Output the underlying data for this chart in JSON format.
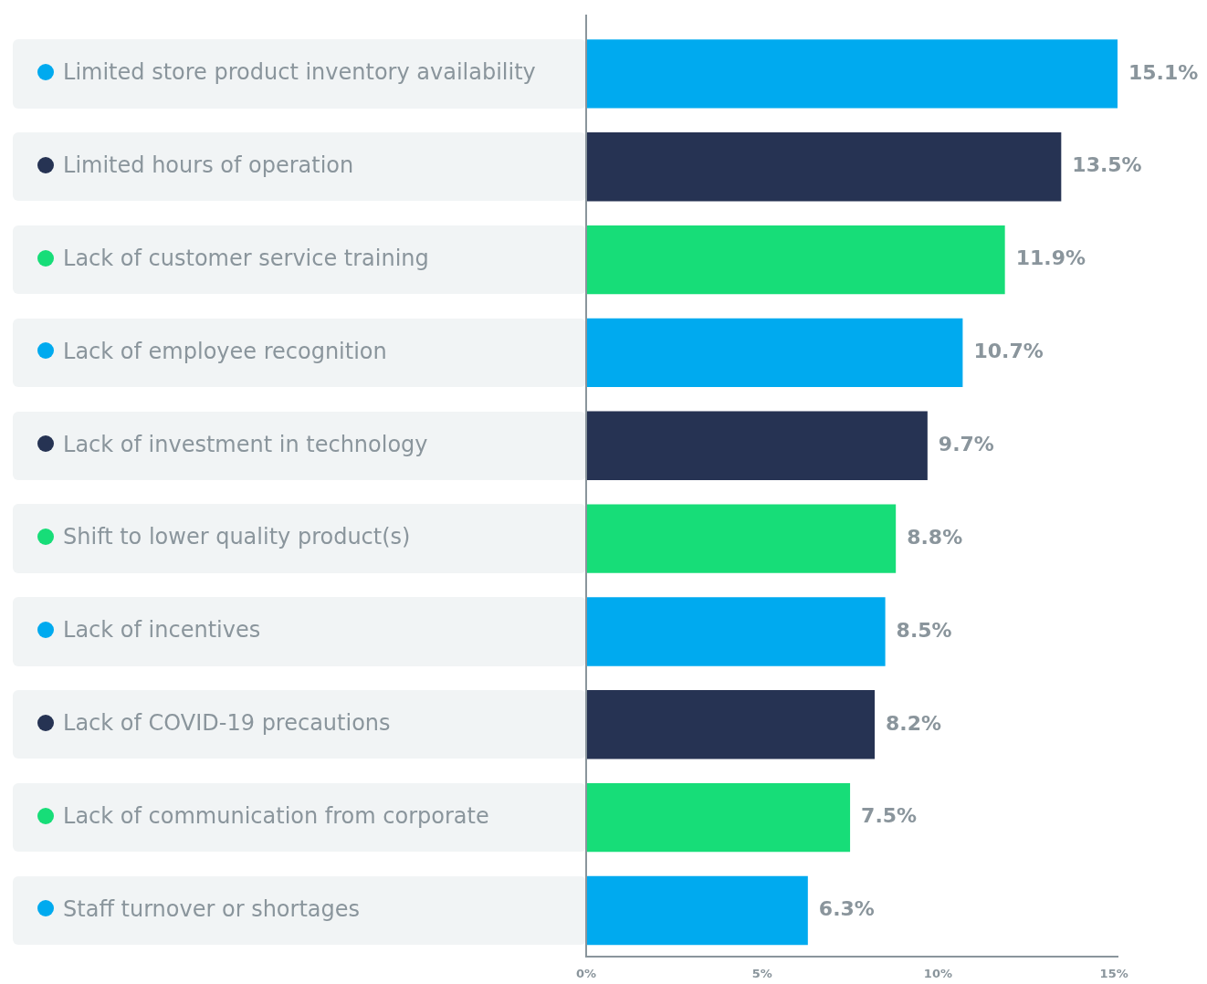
{
  "chart_data": {
    "type": "bar",
    "orientation": "horizontal",
    "categories": [
      "Limited store product inventory availability",
      "Limited hours of operation",
      "Lack of customer service training",
      "Lack of employee recognition",
      "Lack of investment in technology",
      "Shift to lower quality product(s)",
      "Lack of incentives",
      "Lack of COVID-19 precautions",
      "Lack of communication from corporate",
      "Staff turnover or shortages"
    ],
    "values": [
      15.1,
      13.5,
      11.9,
      10.7,
      9.7,
      8.8,
      8.5,
      8.2,
      7.5,
      6.3
    ],
    "colors": [
      "#00aaef",
      "#263353",
      "#17dd78",
      "#00aaef",
      "#263353",
      "#17dd78",
      "#00aaef",
      "#263353",
      "#17dd78",
      "#00aaef"
    ],
    "value_labels": [
      "15.1%",
      "13.5%",
      "11.9%",
      "10.7%",
      "9.7%",
      "8.8%",
      "8.5%",
      "8.2%",
      "7.5%",
      "6.3%"
    ],
    "xlim": [
      0,
      15.1
    ],
    "xticks": [
      {
        "value": 0,
        "label": "0%"
      },
      {
        "value": 5,
        "label": "5%"
      },
      {
        "value": 10,
        "label": "10%"
      },
      {
        "value": 15,
        "label": "15%"
      }
    ],
    "grid": false,
    "legend": false
  }
}
